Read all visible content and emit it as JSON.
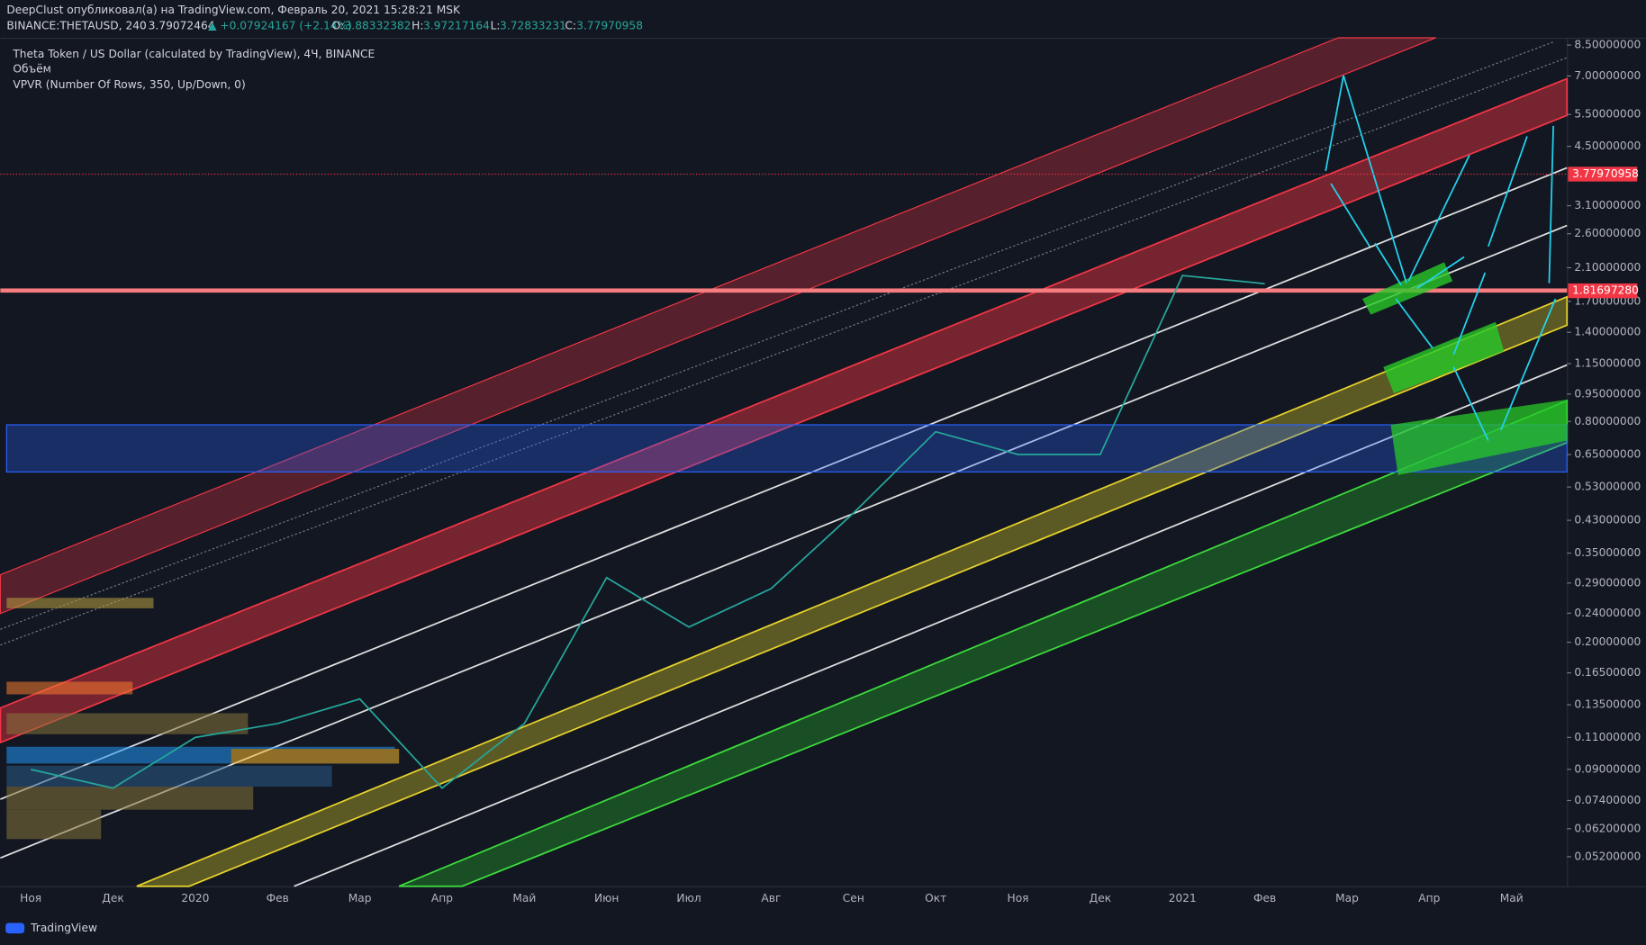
{
  "header": {
    "line1": "DeepClust опубликовал(а) на TradingView.com, Февраль 20, 2021 15:28:21 MSK",
    "symbol": "BINANCE:THETAUSD, 240",
    "quote": "3.79072464",
    "change": "▲ +0.07924167 (+2.14%)",
    "o_label": "O:",
    "o": "3.88332382",
    "h_label": "H:",
    "h": "3.97217164",
    "l_label": "L:",
    "l": "3.72833231",
    "c_label": "C:",
    "c": "3.77970958"
  },
  "legend": [
    "Theta Token / US Dollar (calculated by TradingView), 4Ч, BINANCE",
    "Объём",
    "VPVR (Number Of Rows, 350, Up/Down, 0)"
  ],
  "chart_data": {
    "type": "line",
    "log_scale": true,
    "color": "#26a69a",
    "categories": [
      "Ноя",
      "Дек",
      "2020",
      "Фев",
      "Мар",
      "Апр",
      "Май",
      "Июн",
      "Июл",
      "Авг",
      "Сен",
      "Окт",
      "Ноя",
      "Дек",
      "2021",
      "Фев",
      "Мар",
      "Апр",
      "Май"
    ],
    "values": [
      0.09,
      0.08,
      0.11,
      0.12,
      0.14,
      0.08,
      0.12,
      0.3,
      0.22,
      0.28,
      0.45,
      0.75,
      0.65,
      0.65,
      2.0,
      1.9,
      null,
      null,
      null
    ],
    "ylim": [
      0.0432,
      8.9
    ],
    "yticks": [
      {
        "value": 8.5,
        "label": "8.50000000"
      },
      {
        "value": 7,
        "label": "7.00000000"
      },
      {
        "value": 5.5,
        "label": "5.50000000"
      },
      {
        "value": 4.5,
        "label": "4.50000000"
      },
      {
        "value": 3.1,
        "label": "3.10000000"
      },
      {
        "value": 2.6,
        "label": "2.60000000"
      },
      {
        "value": 2.1,
        "label": "2.10000000"
      },
      {
        "value": 1.7,
        "label": "1.70000000"
      },
      {
        "value": 1.4,
        "label": "1.40000000"
      },
      {
        "value": 1.15,
        "label": "1.15000000"
      },
      {
        "value": 0.95,
        "label": "0.95000000"
      },
      {
        "value": 0.8,
        "label": "0.80000000"
      },
      {
        "value": 0.65,
        "label": "0.65000000"
      },
      {
        "value": 0.53,
        "label": "0.53000000"
      },
      {
        "value": 0.43,
        "label": "0.43000000"
      },
      {
        "value": 0.35,
        "label": "0.35000000"
      },
      {
        "value": 0.29,
        "label": "0.29000000"
      },
      {
        "value": 0.24,
        "label": "0.24000000"
      },
      {
        "value": 0.2,
        "label": "0.20000000"
      },
      {
        "value": 0.165,
        "label": "0.16500000"
      },
      {
        "value": 0.135,
        "label": "0.13500000"
      },
      {
        "value": 0.11,
        "label": "0.11000000"
      },
      {
        "value": 0.09,
        "label": "0.09000000"
      },
      {
        "value": 0.074,
        "label": "0.07400000"
      },
      {
        "value": 0.062,
        "label": "0.06200000"
      },
      {
        "value": 0.052,
        "label": "0.05200000"
      }
    ],
    "last_price": {
      "value": 3.7797,
      "label": "3.77970958"
    },
    "level": {
      "value": 1.81697,
      "label": "1.81697280"
    }
  },
  "footer": {
    "brand": "TradingView"
  }
}
